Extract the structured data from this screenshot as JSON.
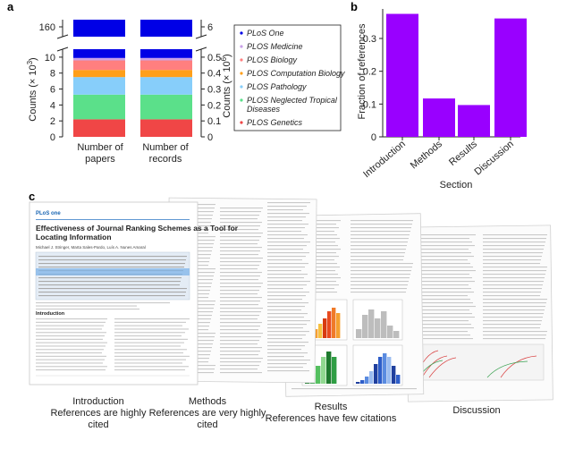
{
  "panel_a": {
    "letter": "a",
    "ylabel_left": "Counts (× 10",
    "ylabel_left_exp": "3",
    "ylabel_left_close": ")",
    "ylabel_right": "Counts (× 10",
    "ylabel_right_exp": "6",
    "ylabel_right_close": ")",
    "left_ticks": [
      "0",
      "2",
      "4",
      "6",
      "8",
      "10",
      "160"
    ],
    "right_ticks": [
      "0",
      "0.1",
      "0.2",
      "0.3",
      "0.4",
      "0.5",
      "6"
    ],
    "bar_labels": [
      [
        "Number of",
        "papers"
      ],
      [
        "Number of",
        "records"
      ]
    ],
    "legend": [
      "PLoS One",
      "PLOS Medicine",
      "PLOS Biology",
      "PLOS Computation Biology",
      "PLOS Pathology",
      "PLOS Neglected Tropical",
      "Diseases",
      "PLOS Genetics"
    ],
    "colors": {
      "PLoS One": "#0000e6",
      "PLOS Medicine": "#c8a0e8",
      "PLOS Biology": "#ff7f7f",
      "PLOS Computation Biology": "#ff9f1a",
      "PLOS Pathology": "#87cefa",
      "PLOS Neglected Tropical Diseases": "#5be08a",
      "PLOS Genetics": "#f04646"
    }
  },
  "panel_b": {
    "letter": "b",
    "ylabel": "Fraction of references",
    "xlabel": "Section",
    "bar_color": "#9900ff"
  },
  "panel_c": {
    "letter": "c",
    "paper_title": [
      "Effectiveness of Journal Ranking Schemes as a Tool for",
      "Locating Information"
    ],
    "paper_authors": "Michael J. Stringer, Marta Sales-Pardo, Luís A. Nunes Amaral",
    "captions": [
      [
        "Introduction",
        "References are highly",
        "cited"
      ],
      [
        "Methods",
        "References are very highly",
        "cited"
      ],
      [
        "Results",
        "References have few citations"
      ],
      [
        "Discussion"
      ]
    ]
  },
  "chart_data": [
    {
      "type": "bar",
      "stacked": true,
      "axis_break": true,
      "categories": [
        "Number of papers",
        "Number of records"
      ],
      "y_axes": [
        {
          "side": "left",
          "label": "Counts (× 10^3)",
          "ticks": [
            0,
            2,
            4,
            6,
            8,
            10,
            160
          ]
        },
        {
          "side": "right",
          "label": "Counts (× 10^6)",
          "ticks": [
            0,
            0.1,
            0.2,
            0.3,
            0.4,
            0.5,
            6
          ]
        }
      ],
      "series": [
        {
          "name": "PLOS Genetics",
          "values": [
            2.2,
            0.11
          ]
        },
        {
          "name": "PLOS Neglected Tropical Diseases",
          "values": [
            3.1,
            0.155
          ]
        },
        {
          "name": "PLOS Pathology",
          "values": [
            2.2,
            0.11
          ]
        },
        {
          "name": "PLOS Computation Biology",
          "values": [
            0.9,
            0.045
          ]
        },
        {
          "name": "PLOS Biology",
          "values": [
            1.2,
            0.06
          ]
        },
        {
          "name": "PLOS Medicine",
          "values": [
            0.3,
            0.015
          ]
        },
        {
          "name": "PLoS One",
          "values": [
            150,
            5.5
          ]
        }
      ],
      "legend_position": "right"
    },
    {
      "type": "bar",
      "categories": [
        "Introduction",
        "Methods",
        "Results",
        "Discussion"
      ],
      "values": [
        0.375,
        0.117,
        0.097,
        0.361
      ],
      "xlabel": "Section",
      "ylabel": "Fraction of references",
      "ylim": [
        0,
        0.39
      ],
      "yticks": [
        0,
        0.1,
        0.2,
        0.3
      ]
    }
  ]
}
